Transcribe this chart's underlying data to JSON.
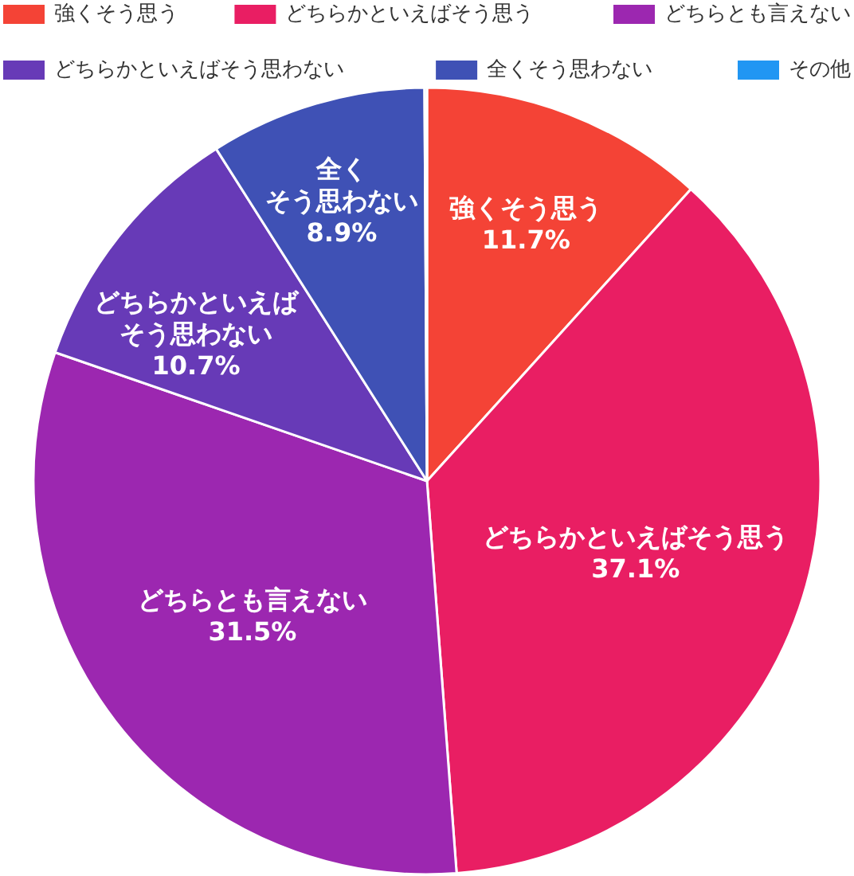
{
  "chart_data": {
    "type": "pie",
    "categories": [
      "強くそう思う",
      "どちらかといえばそう思う",
      "どちらとも言えない",
      "どちらかといえばそう思わない",
      "全くそう思わない",
      "その他"
    ],
    "values": [
      11.7,
      37.1,
      31.5,
      10.7,
      8.9,
      0.1
    ],
    "colors": [
      "#f44336",
      "#e91e63",
      "#9c27b0",
      "#673ab7",
      "#3f51b5",
      "#2196f3"
    ],
    "value_labels": [
      "強くそう思う\n11.7%",
      "どちらかといえばそう思う\n37.1%",
      "どちらとも言えない\n31.5%",
      "どちらかといえばそう思わない\n10.7%",
      "全くそう思わない\n8.9%",
      null
    ],
    "legend": "top"
  }
}
